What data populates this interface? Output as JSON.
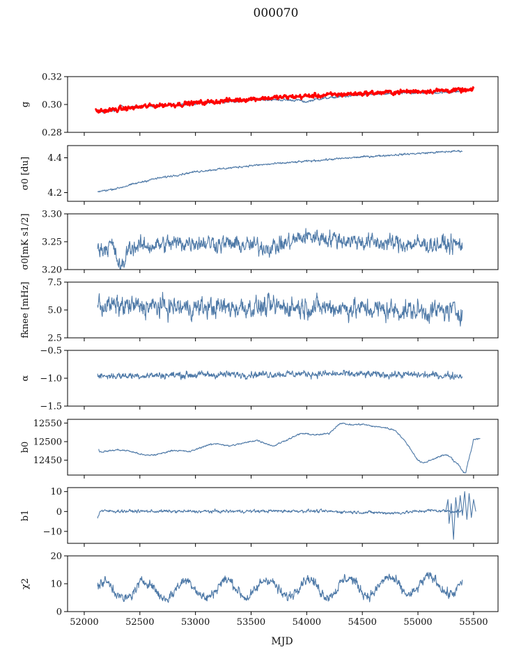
{
  "title": "000070",
  "xlabel": "MJD",
  "xticks": [
    52000,
    52500,
    53000,
    53500,
    54000,
    54500,
    55000,
    55500
  ],
  "xlim": [
    51850,
    55720
  ],
  "colors": {
    "series": "#4e79a7",
    "overlay": "#ff0000"
  },
  "chart_data": [
    {
      "type": "line",
      "ylabel": "g",
      "ylim": [
        0.28,
        0.32
      ],
      "yticks": [
        0.28,
        0.3,
        0.32
      ],
      "ytick_labels": [
        "0.28",
        "0.30",
        "0.32"
      ],
      "series": [
        {
          "values": [
            [
              52110,
              0.2945
            ],
            [
              52200,
              0.2948
            ],
            [
              52300,
              0.296
            ],
            [
              52320,
              0.2995
            ],
            [
              52360,
              0.2975
            ],
            [
              52500,
              0.2985
            ],
            [
              52700,
              0.2995
            ],
            [
              53000,
              0.3005
            ],
            [
              53300,
              0.302
            ],
            [
              53600,
              0.3035
            ],
            [
              53950,
              0.303
            ],
            [
              53970,
              0.3015
            ],
            [
              54100,
              0.304
            ],
            [
              54300,
              0.3055
            ],
            [
              54500,
              0.307
            ],
            [
              54700,
              0.3075
            ],
            [
              55000,
              0.3085
            ],
            [
              55200,
              0.3085
            ],
            [
              55400,
              0.3095
            ]
          ],
          "noise": 0.0006
        },
        {
          "values": [
            [
              52100,
              0.295
            ],
            [
              52300,
              0.2965
            ],
            [
              52600,
              0.299
            ],
            [
              53000,
              0.301
            ],
            [
              53500,
              0.304
            ],
            [
              54000,
              0.306
            ],
            [
              54500,
              0.308
            ],
            [
              55000,
              0.3095
            ],
            [
              55300,
              0.3102
            ],
            [
              55500,
              0.31
            ]
          ],
          "noise": 0.0012,
          "thick": true
        }
      ]
    },
    {
      "type": "line",
      "ylabel": "σ0 [du]",
      "ylim": [
        4.15,
        4.47
      ],
      "yticks": [
        4.2,
        4.4
      ],
      "ytick_labels": [
        "4.2",
        "4.4"
      ],
      "series": [
        {
          "values": [
            [
              52120,
              4.205
            ],
            [
              52300,
              4.225
            ],
            [
              52600,
              4.275
            ],
            [
              53000,
              4.32
            ],
            [
              53500,
              4.355
            ],
            [
              54000,
              4.38
            ],
            [
              54500,
              4.405
            ],
            [
              55000,
              4.425
            ],
            [
              55400,
              4.44
            ]
          ],
          "noise": 0.004
        }
      ]
    },
    {
      "type": "line",
      "ylabel": "σ0[mK s1/2]",
      "ylim": [
        3.2,
        3.3
      ],
      "yticks": [
        3.2,
        3.25,
        3.3
      ],
      "ytick_labels": [
        "3.20",
        "3.25",
        "3.30"
      ],
      "series": [
        {
          "values": [
            [
              52120,
              3.235
            ],
            [
              52250,
              3.245
            ],
            [
              52300,
              3.215
            ],
            [
              52340,
              3.2
            ],
            [
              52400,
              3.24
            ],
            [
              53000,
              3.25
            ],
            [
              53700,
              3.24
            ],
            [
              54000,
              3.26
            ],
            [
              54500,
              3.25
            ],
            [
              55000,
              3.245
            ],
            [
              55400,
              3.245
            ]
          ],
          "noise": 0.011
        }
      ]
    },
    {
      "type": "line",
      "ylabel": "fknee [mHz]",
      "ylim": [
        2.5,
        7.5
      ],
      "yticks": [
        2.5,
        5.0,
        7.5
      ],
      "ytick_labels": [
        "2.5",
        "5.0",
        "7.5"
      ],
      "series": [
        {
          "values": [
            [
              52120,
              5.4
            ],
            [
              53000,
              5.2
            ],
            [
              54000,
              5.3
            ],
            [
              55000,
              4.9
            ],
            [
              55400,
              4.9
            ]
          ],
          "noise": 0.65
        }
      ]
    },
    {
      "type": "line",
      "ylabel": "α",
      "ylim": [
        -1.5,
        -0.5
      ],
      "yticks": [
        -1.5,
        -1.0,
        -0.5
      ],
      "ytick_labels": [
        "−1.5",
        "−1.0",
        "−0.5"
      ],
      "series": [
        {
          "values": [
            [
              52120,
              -0.96
            ],
            [
              53000,
              -0.94
            ],
            [
              54000,
              -0.92
            ],
            [
              55000,
              -0.94
            ],
            [
              55400,
              -0.96
            ]
          ],
          "noise": 0.045
        }
      ]
    },
    {
      "type": "line",
      "ylabel": "b0",
      "ylim": [
        12410,
        12560
      ],
      "yticks": [
        12450,
        12500,
        12550
      ],
      "ytick_labels": [
        "12450",
        "12500",
        "12550"
      ],
      "series": [
        {
          "values": [
            [
              52130,
              12480
            ],
            [
              52140,
              12472
            ],
            [
              52300,
              12478
            ],
            [
              52400,
              12475
            ],
            [
              52550,
              12463
            ],
            [
              52650,
              12465
            ],
            [
              52800,
              12477
            ],
            [
              52950,
              12473
            ],
            [
              53100,
              12490
            ],
            [
              53200,
              12495
            ],
            [
              53300,
              12488
            ],
            [
              53450,
              12497
            ],
            [
              53550,
              12504
            ],
            [
              53700,
              12488
            ],
            [
              53800,
              12502
            ],
            [
              53950,
              12522
            ],
            [
              54100,
              12518
            ],
            [
              54200,
              12522
            ],
            [
              54300,
              12550
            ],
            [
              54400,
              12545
            ],
            [
              54500,
              12547
            ],
            [
              54600,
              12541
            ],
            [
              54700,
              12538
            ],
            [
              54800,
              12530
            ],
            [
              54900,
              12495
            ],
            [
              55000,
              12450
            ],
            [
              55050,
              12442
            ],
            [
              55150,
              12455
            ],
            [
              55250,
              12465
            ],
            [
              55300,
              12458
            ],
            [
              55320,
              12448
            ],
            [
              55360,
              12440
            ],
            [
              55400,
              12420
            ],
            [
              55430,
              12415
            ],
            [
              55450,
              12445
            ],
            [
              55480,
              12478
            ],
            [
              55500,
              12507
            ],
            [
              55560,
              12508
            ]
          ],
          "noise": 1.5
        }
      ]
    },
    {
      "type": "line",
      "ylabel": "b1",
      "ylim": [
        -16,
        12
      ],
      "yticks": [
        -10,
        0,
        10
      ],
      "ytick_labels": [
        "−10",
        "0",
        "10"
      ],
      "series": [
        {
          "values": [
            [
              52120,
              -3.5
            ],
            [
              52140,
              0.2
            ],
            [
              53000,
              0.0
            ],
            [
              54000,
              0.3
            ],
            [
              54800,
              -0.8
            ],
            [
              55100,
              0.5
            ],
            [
              55400,
              0.0
            ]
          ],
          "noise": 0.55
        },
        {
          "values": [
            [
              55250,
              0
            ],
            [
              55270,
              6
            ],
            [
              55280,
              -6
            ],
            [
              55300,
              4
            ],
            [
              55320,
              -14
            ],
            [
              55340,
              7
            ],
            [
              55360,
              -3
            ],
            [
              55380,
              8
            ],
            [
              55400,
              -2
            ],
            [
              55420,
              10
            ],
            [
              55440,
              -4
            ],
            [
              55460,
              9
            ],
            [
              55480,
              -3
            ],
            [
              55500,
              6
            ],
            [
              55520,
              0
            ]
          ],
          "noise": 0.0
        }
      ]
    },
    {
      "type": "line",
      "ylabel": "χ2",
      "ylim": [
        0,
        20
      ],
      "yticks": [
        0,
        10,
        20
      ],
      "ytick_labels": [
        "0",
        "10",
        "20"
      ],
      "series": [
        {
          "values": [
            [
              52120,
              7.5
            ],
            [
              55400,
              9.5
            ]
          ],
          "noise": 1.3,
          "periodic": {
            "amplitude": 3.2,
            "period": 365.25,
            "phase": 0.5
          }
        }
      ]
    }
  ]
}
